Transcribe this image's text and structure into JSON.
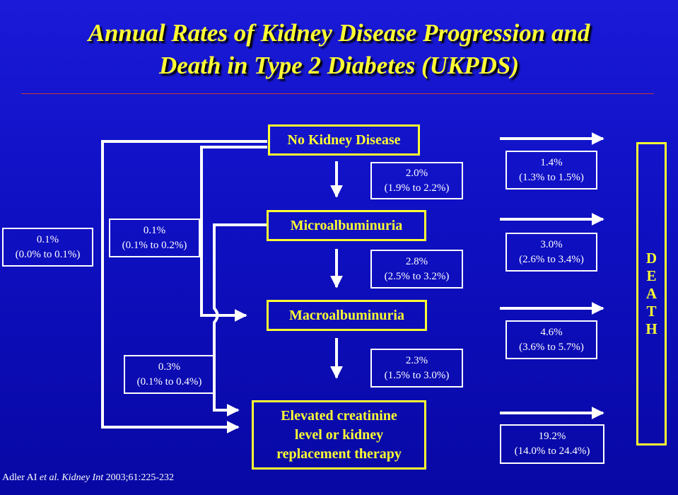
{
  "title": {
    "line1": "Annual Rates of Kidney Disease Progression and",
    "line2": "Death in Type 2 Diabetes (UKPDS)"
  },
  "stages": {
    "none": "No Kidney Disease",
    "micro": "Microalbuminuria",
    "macro": "Macroalbuminuria",
    "elevated": [
      "Elevated creatinine",
      "level or kidney",
      "replacement therapy"
    ]
  },
  "progression_rates": [
    {
      "rate": "2.0%",
      "ci": "(1.9% to 2.2%)"
    },
    {
      "rate": "2.8%",
      "ci": "(2.5% to 3.2%)"
    },
    {
      "rate": "2.3%",
      "ci": "(1.5% to 3.0%)"
    }
  ],
  "skip_rates": {
    "none_to_elevated": {
      "rate": "0.1%",
      "ci": "(0.0% to 0.1%)"
    },
    "none_to_macro": {
      "rate": "0.1%",
      "ci": "(0.1% to 0.2%)"
    },
    "micro_to_elevated": {
      "rate": "0.3%",
      "ci": "(0.1% to 0.4%)"
    }
  },
  "death_rates": [
    {
      "rate": "1.4%",
      "ci": "(1.3% to 1.5%)"
    },
    {
      "rate": "3.0%",
      "ci": "(2.6% to 3.4%)"
    },
    {
      "rate": "4.6%",
      "ci": "(3.6% to 5.7%)"
    },
    {
      "rate": "19.2%",
      "ci": "(14.0% to 24.4%)"
    }
  ],
  "death_letters": [
    "D",
    "E",
    "A",
    "T",
    "H"
  ],
  "citation": {
    "authors": "Adler AI ",
    "etal": "et al.",
    "journal": "Kidney Int",
    "ref": " 2003;61:225-232"
  },
  "colors": {
    "background": "#1212cc",
    "title": "#ffff33",
    "stage_border": "#ffff33",
    "rule": "#c43a3a",
    "lines": "#ffffff"
  }
}
